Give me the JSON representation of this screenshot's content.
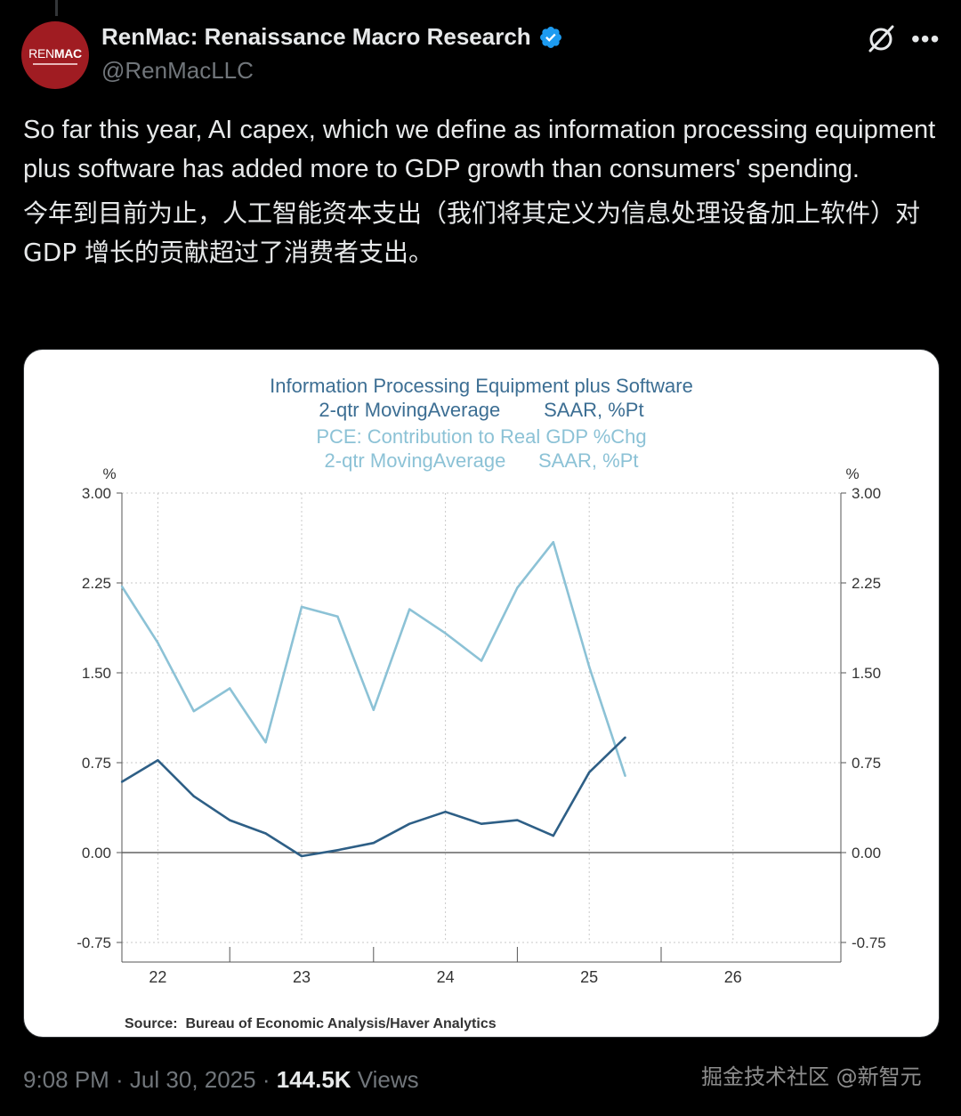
{
  "author": {
    "display_name": "RenMac: Renaissance Macro Research",
    "handle": "@RenMacLLC",
    "avatar_text_light": "REN",
    "avatar_text_bold": "MAC"
  },
  "tweet": {
    "text_en": "So far this year, AI capex, which we define as information processing equipment plus software has added more to GDP growth than consumers' spending.",
    "text_zh": "今年到目前为止，人工智能资本支出（我们将其定义为信息处理设备加上软件）对 GDP 增长的贡献超过了消费者支出。"
  },
  "footer": {
    "time": "9:08 PM · Jul 30, 2025 · ",
    "views_count": "144.5K",
    "views_label": " Views"
  },
  "watermark": "掘金技术社区 @新智元",
  "icons": {
    "grok": "grok-icon",
    "more": "more-icon",
    "verified": "verified-badge-icon"
  },
  "colors": {
    "series_ai": "#2e5f86",
    "series_pce": "#8cc2d6",
    "title_ai": "#3c6e93",
    "title_pce": "#8cc2d6",
    "verified": "#1d9bf0"
  },
  "chart_data": {
    "type": "line",
    "title_lines": [
      "Information Processing Equipment plus Software",
      "2-qtr MovingAverage        SAAR, %Pt",
      "PCE: Contribution to Real GDP %Chg",
      "2-qtr MovingAverage      SAAR, %Pt"
    ],
    "left_unit": "%",
    "right_unit": "%",
    "yticks": [
      "3.00",
      "2.25",
      "1.50",
      "0.75",
      "0.00",
      "-0.75"
    ],
    "ytick_values": [
      3.0,
      2.25,
      1.5,
      0.75,
      0.0,
      -0.75
    ],
    "ylim": [
      -0.75,
      3.0
    ],
    "xticks": [
      "22",
      "23",
      "24",
      "25",
      "26"
    ],
    "xlim": [
      2021.75,
      2026.75
    ],
    "grid": true,
    "source": "Source:  Bureau of Economic Analysis/Haver Analytics",
    "series": [
      {
        "name": "PCE: Contribution to Real GDP %Chg",
        "color": "#8cc2d6",
        "x": [
          2021.75,
          2022.0,
          2022.25,
          2022.5,
          2022.75,
          2023.0,
          2023.25,
          2023.5,
          2023.75,
          2024.0,
          2024.25,
          2024.5,
          2024.75,
          2025.0,
          2025.25
        ],
        "values": [
          2.22,
          1.75,
          1.18,
          1.37,
          0.92,
          2.05,
          1.97,
          1.19,
          2.03,
          1.83,
          1.6,
          2.21,
          2.59,
          1.55,
          0.64
        ]
      },
      {
        "name": "Information Processing Equipment plus Software",
        "color": "#2e5f86",
        "x": [
          2021.75,
          2022.0,
          2022.25,
          2022.5,
          2022.75,
          2023.0,
          2023.25,
          2023.5,
          2023.75,
          2024.0,
          2024.25,
          2024.5,
          2024.75,
          2025.0,
          2025.25
        ],
        "values": [
          0.59,
          0.77,
          0.47,
          0.27,
          0.16,
          -0.03,
          0.02,
          0.08,
          0.24,
          0.34,
          0.24,
          0.27,
          0.14,
          0.67,
          0.96
        ]
      }
    ]
  }
}
